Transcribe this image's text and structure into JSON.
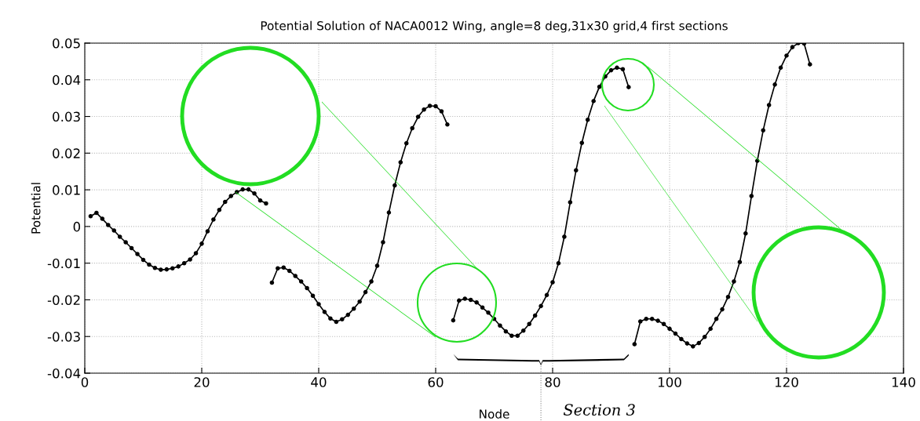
{
  "chart_data": {
    "type": "line",
    "title": "Potential Solution of NACA0012 Wing, angle=8 deg,31x30 grid,4 first sections",
    "xlabel": "Node",
    "ylabel": "Potential",
    "xlim": [
      0,
      140
    ],
    "xticks": [
      0,
      20,
      40,
      60,
      80,
      100,
      120,
      140
    ],
    "ylim": [
      -0.04,
      0.05
    ],
    "yticks": [
      -0.04,
      -0.03,
      -0.02,
      -0.01,
      0,
      0.01,
      0.02,
      0.03,
      0.04,
      0.05
    ],
    "grid": true,
    "marker": "circle",
    "line_style": "solid",
    "annotations": [
      "Section 3"
    ],
    "series": [
      {
        "color": "#000000",
        "x": [
          1,
          2,
          3,
          4,
          5,
          6,
          7,
          8,
          9,
          10,
          11,
          12,
          13,
          14,
          15,
          16,
          17,
          18,
          19,
          20,
          21,
          22,
          23,
          24,
          25,
          26,
          27,
          28,
          29,
          30,
          31
        ],
        "values": [
          0.0028,
          0.0037,
          0.0021,
          0.0004,
          -0.0011,
          -0.0028,
          -0.0043,
          -0.0059,
          -0.0075,
          -0.0091,
          -0.0104,
          -0.0113,
          -0.0118,
          -0.0117,
          -0.0114,
          -0.0109,
          -0.01,
          -0.009,
          -0.0073,
          -0.0047,
          -0.0013,
          0.0019,
          0.0045,
          0.0067,
          0.0083,
          0.0094,
          0.0101,
          0.0101,
          0.009,
          0.0071,
          0.0063
        ]
      },
      {
        "color": "#000000",
        "x": [
          32,
          33,
          34,
          35,
          36,
          37,
          38,
          39,
          40,
          41,
          42,
          43,
          44,
          45,
          46,
          47,
          48,
          49,
          50,
          51,
          52,
          53,
          54,
          55,
          56,
          57,
          58,
          59,
          60,
          61,
          62
        ],
        "values": [
          -0.0153,
          -0.0114,
          -0.0112,
          -0.0121,
          -0.0135,
          -0.015,
          -0.0168,
          -0.0189,
          -0.0212,
          -0.0233,
          -0.0251,
          -0.026,
          -0.0253,
          -0.0241,
          -0.0224,
          -0.0205,
          -0.0179,
          -0.015,
          -0.0107,
          -0.0043,
          0.0038,
          0.0112,
          0.0175,
          0.0227,
          0.0268,
          0.0299,
          0.0319,
          0.0329,
          0.0328,
          0.0314,
          0.0278
        ]
      },
      {
        "color": "#000000",
        "x": [
          63,
          64,
          65,
          66,
          67,
          68,
          69,
          70,
          71,
          72,
          73,
          74,
          75,
          76,
          77,
          78,
          79,
          80,
          81,
          82,
          83,
          84,
          85,
          86,
          87,
          88,
          89,
          90,
          91,
          92,
          93
        ],
        "values": [
          -0.0256,
          -0.0202,
          -0.0197,
          -0.02,
          -0.0207,
          -0.0221,
          -0.0235,
          -0.0252,
          -0.027,
          -0.0286,
          -0.0298,
          -0.0298,
          -0.0284,
          -0.0266,
          -0.0243,
          -0.0217,
          -0.0187,
          -0.0152,
          -0.01,
          -0.0028,
          0.0066,
          0.0153,
          0.0228,
          0.0291,
          0.0342,
          0.0381,
          0.0409,
          0.0426,
          0.0433,
          0.0429,
          0.038
        ]
      },
      {
        "color": "#000000",
        "x": [
          94,
          95,
          96,
          97,
          98,
          99,
          100,
          101,
          102,
          103,
          104,
          105,
          106,
          107,
          108,
          109,
          110,
          111,
          112,
          113,
          114,
          115,
          116,
          117,
          118,
          119,
          120,
          121,
          122,
          123,
          124
        ],
        "values": [
          -0.0321,
          -0.0259,
          -0.0252,
          -0.0252,
          -0.0257,
          -0.0266,
          -0.0279,
          -0.0292,
          -0.0307,
          -0.0319,
          -0.0327,
          -0.0318,
          -0.0301,
          -0.0279,
          -0.0252,
          -0.0226,
          -0.0192,
          -0.015,
          -0.0097,
          -0.0019,
          0.0083,
          0.0179,
          0.0262,
          0.0331,
          0.0387,
          0.0433,
          0.0466,
          0.0489,
          0.05,
          0.0499,
          0.0442
        ]
      }
    ]
  }
}
